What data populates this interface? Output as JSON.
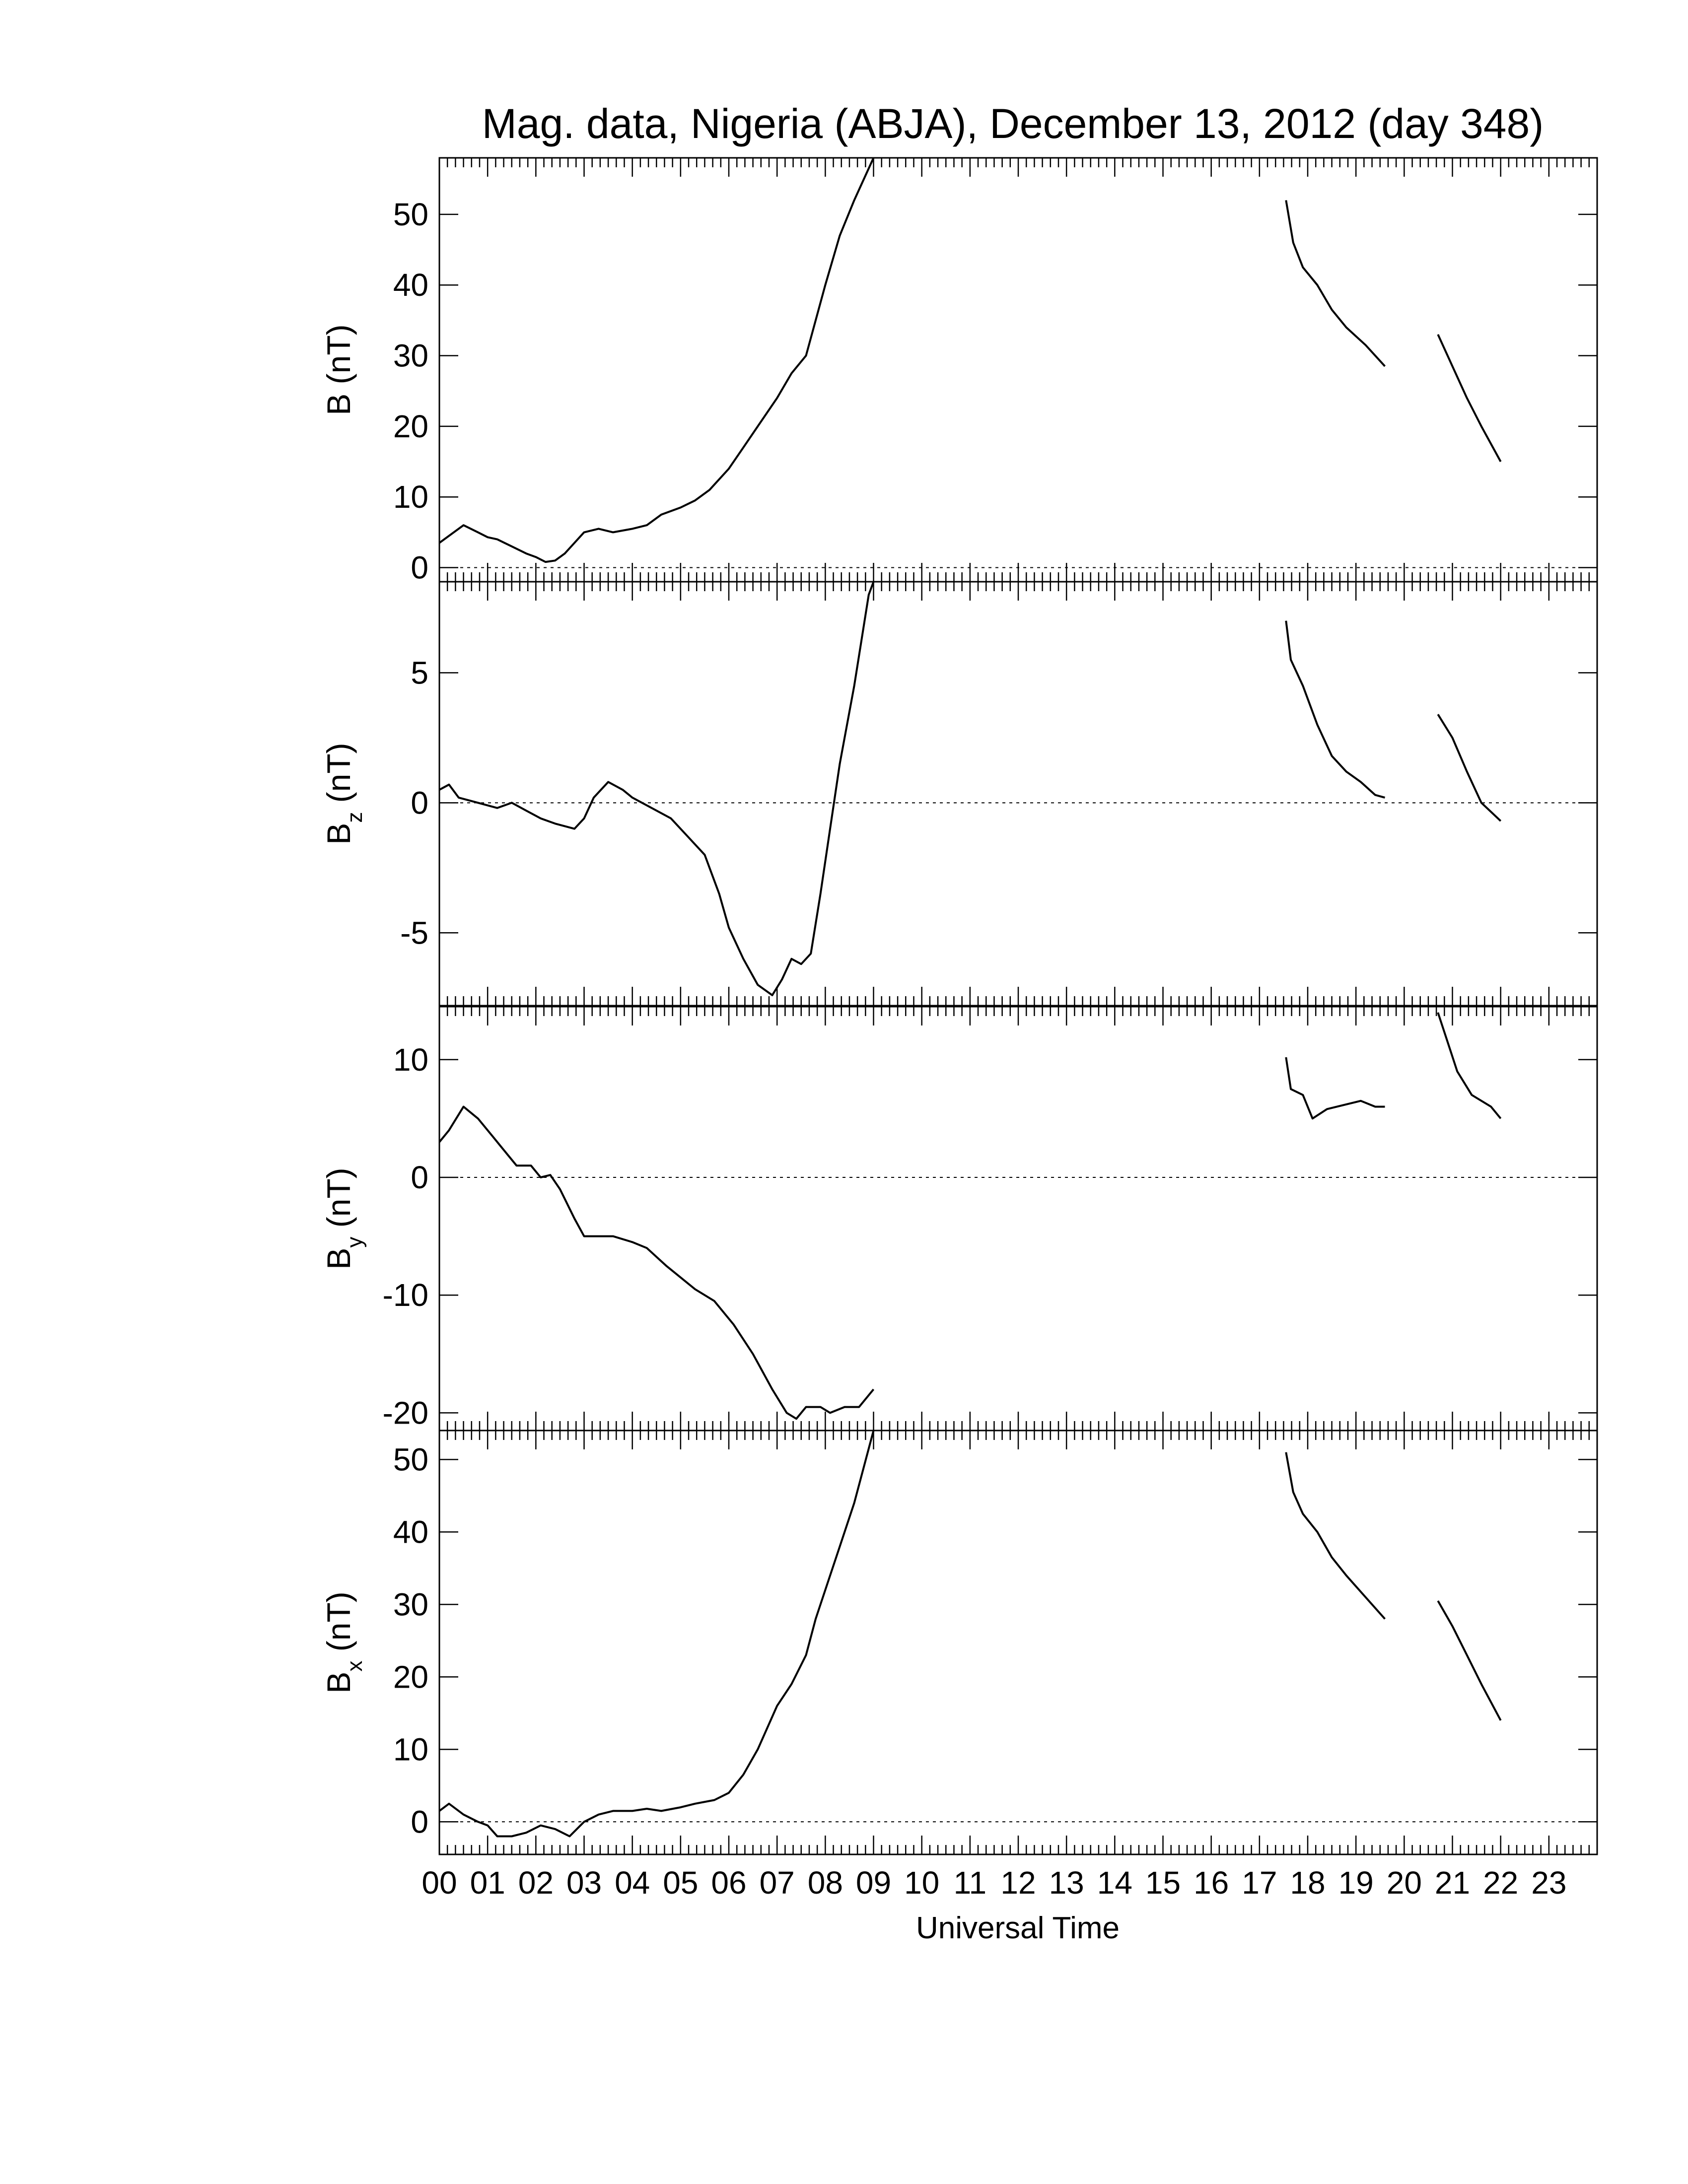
{
  "figure": {
    "title": "Mag. data, Nigeria (ABJA), December 13, 2012 (day 348)",
    "xlabel": "Universal Time"
  },
  "chart_data": {
    "type": "line",
    "title": "Mag. data, Nigeria (ABJA), December 13, 2012 (day 348)",
    "xlabel": "Universal Time",
    "x_unit": "hours UT",
    "xlim": [
      0,
      24
    ],
    "x_tick_labels": [
      "00",
      "01",
      "02",
      "03",
      "04",
      "05",
      "06",
      "07",
      "08",
      "09",
      "10",
      "11",
      "12",
      "13",
      "14",
      "15",
      "16",
      "17",
      "18",
      "19",
      "20",
      "21",
      "22",
      "23"
    ],
    "line_color": "#000000",
    "zero_reference_line": "dotted",
    "grid": false,
    "panels": [
      {
        "id": "B",
        "ylabel_main": "B",
        "ylabel_sub": "",
        "ylabel_unit": " (nT)",
        "ylim": [
          -2,
          58
        ],
        "yticks": [
          0,
          10,
          20,
          30,
          40,
          50
        ],
        "segments": [
          [
            [
              0.0,
              3.5
            ],
            [
              0.2,
              4.5
            ],
            [
              0.5,
              6.0
            ],
            [
              0.8,
              5.0
            ],
            [
              1.0,
              4.3
            ],
            [
              1.2,
              4.0
            ],
            [
              1.5,
              3.0
            ],
            [
              1.8,
              2.0
            ],
            [
              2.0,
              1.5
            ],
            [
              2.2,
              0.8
            ],
            [
              2.4,
              1.0
            ],
            [
              2.6,
              2.0
            ],
            [
              2.8,
              3.5
            ],
            [
              3.0,
              5.0
            ],
            [
              3.3,
              5.5
            ],
            [
              3.6,
              5.0
            ],
            [
              4.0,
              5.5
            ],
            [
              4.3,
              6.0
            ],
            [
              4.6,
              7.5
            ],
            [
              5.0,
              8.5
            ],
            [
              5.3,
              9.5
            ],
            [
              5.6,
              11.0
            ],
            [
              6.0,
              14.0
            ],
            [
              6.3,
              17.0
            ],
            [
              6.6,
              20.0
            ],
            [
              7.0,
              24.0
            ],
            [
              7.3,
              27.5
            ],
            [
              7.6,
              30.0
            ],
            [
              7.8,
              35.0
            ],
            [
              8.0,
              40.0
            ],
            [
              8.3,
              47.0
            ],
            [
              8.6,
              52.0
            ],
            [
              9.0,
              58.0
            ]
          ],
          [
            [
              17.55,
              52.0
            ],
            [
              17.7,
              46.0
            ],
            [
              17.9,
              42.5
            ],
            [
              18.2,
              40.0
            ],
            [
              18.5,
              36.5
            ],
            [
              18.8,
              34.0
            ],
            [
              19.2,
              31.5
            ],
            [
              19.6,
              28.5
            ]
          ],
          [
            [
              20.7,
              33.0
            ],
            [
              21.0,
              28.5
            ],
            [
              21.3,
              24.0
            ],
            [
              21.6,
              20.0
            ],
            [
              22.0,
              15.0
            ]
          ]
        ]
      },
      {
        "id": "Bz",
        "ylabel_main": "B",
        "ylabel_sub": "z",
        "ylabel_unit": " (nT)",
        "ylim": [
          -7.8,
          8.5
        ],
        "yticks": [
          -5,
          0,
          5
        ],
        "segments": [
          [
            [
              0.0,
              0.5
            ],
            [
              0.2,
              0.7
            ],
            [
              0.4,
              0.2
            ],
            [
              0.8,
              0.0
            ],
            [
              1.2,
              -0.2
            ],
            [
              1.5,
              0.0
            ],
            [
              1.8,
              -0.3
            ],
            [
              2.1,
              -0.6
            ],
            [
              2.4,
              -0.8
            ],
            [
              2.8,
              -1.0
            ],
            [
              3.0,
              -0.6
            ],
            [
              3.2,
              0.2
            ],
            [
              3.5,
              0.8
            ],
            [
              3.8,
              0.5
            ],
            [
              4.0,
              0.2
            ],
            [
              4.4,
              -0.2
            ],
            [
              4.8,
              -0.6
            ],
            [
              5.2,
              -1.4
            ],
            [
              5.5,
              -2.0
            ],
            [
              5.8,
              -3.5
            ],
            [
              6.0,
              -4.8
            ],
            [
              6.3,
              -6.0
            ],
            [
              6.6,
              -7.0
            ],
            [
              6.9,
              -7.4
            ],
            [
              7.1,
              -6.8
            ],
            [
              7.3,
              -6.0
            ],
            [
              7.5,
              -6.2
            ],
            [
              7.7,
              -5.8
            ],
            [
              7.9,
              -3.5
            ],
            [
              8.1,
              -1.0
            ],
            [
              8.3,
              1.5
            ],
            [
              8.6,
              4.5
            ],
            [
              8.9,
              8.0
            ],
            [
              9.0,
              8.5
            ]
          ],
          [
            [
              17.55,
              7.0
            ],
            [
              17.65,
              5.5
            ],
            [
              17.9,
              4.5
            ],
            [
              18.2,
              3.0
            ],
            [
              18.5,
              1.8
            ],
            [
              18.8,
              1.2
            ],
            [
              19.1,
              0.8
            ],
            [
              19.4,
              0.3
            ],
            [
              19.6,
              0.2
            ]
          ],
          [
            [
              20.7,
              3.4
            ],
            [
              21.0,
              2.5
            ],
            [
              21.3,
              1.2
            ],
            [
              21.6,
              0.0
            ],
            [
              22.0,
              -0.7
            ]
          ]
        ]
      },
      {
        "id": "By",
        "ylabel_main": "B",
        "ylabel_sub": "y",
        "ylabel_unit": " (nT)",
        "ylim": [
          -21.5,
          14.5
        ],
        "yticks": [
          -20,
          -10,
          0,
          10
        ],
        "segments": [
          [
            [
              0.0,
              3.0
            ],
            [
              0.2,
              4.0
            ],
            [
              0.5,
              6.0
            ],
            [
              0.8,
              5.0
            ],
            [
              1.1,
              3.5
            ],
            [
              1.3,
              2.5
            ],
            [
              1.6,
              1.0
            ],
            [
              1.9,
              1.0
            ],
            [
              2.1,
              0.0
            ],
            [
              2.3,
              0.2
            ],
            [
              2.5,
              -1.0
            ],
            [
              2.8,
              -3.5
            ],
            [
              3.0,
              -5.0
            ],
            [
              3.3,
              -5.0
            ],
            [
              3.6,
              -5.0
            ],
            [
              4.0,
              -5.5
            ],
            [
              4.3,
              -6.0
            ],
            [
              4.7,
              -7.5
            ],
            [
              5.0,
              -8.5
            ],
            [
              5.3,
              -9.5
            ],
            [
              5.7,
              -10.5
            ],
            [
              6.1,
              -12.5
            ],
            [
              6.5,
              -15.0
            ],
            [
              6.9,
              -18.0
            ],
            [
              7.2,
              -20.0
            ],
            [
              7.4,
              -20.5
            ],
            [
              7.6,
              -19.5
            ],
            [
              7.9,
              -19.5
            ],
            [
              8.1,
              -20.0
            ],
            [
              8.4,
              -19.5
            ],
            [
              8.7,
              -19.5
            ],
            [
              9.0,
              -18.0
            ]
          ],
          [
            [
              17.55,
              10.2
            ],
            [
              17.65,
              7.5
            ],
            [
              17.9,
              7.0
            ],
            [
              18.1,
              5.0
            ],
            [
              18.4,
              5.8
            ],
            [
              18.8,
              6.2
            ],
            [
              19.1,
              6.5
            ],
            [
              19.4,
              6.0
            ],
            [
              19.6,
              6.0
            ]
          ],
          [
            [
              20.7,
              14.0
            ],
            [
              20.9,
              11.5
            ],
            [
              21.1,
              9.0
            ],
            [
              21.4,
              7.0
            ],
            [
              21.8,
              6.0
            ],
            [
              22.0,
              5.0
            ]
          ]
        ]
      },
      {
        "id": "Bx",
        "ylabel_main": "B",
        "ylabel_sub": "x",
        "ylabel_unit": " (nT)",
        "ylim": [
          -4.5,
          54
        ],
        "yticks": [
          0,
          10,
          20,
          30,
          40,
          50
        ],
        "segments": [
          [
            [
              0.0,
              1.5
            ],
            [
              0.2,
              2.5
            ],
            [
              0.5,
              1.0
            ],
            [
              0.8,
              0.0
            ],
            [
              1.0,
              -0.5
            ],
            [
              1.2,
              -2.0
            ],
            [
              1.5,
              -2.0
            ],
            [
              1.8,
              -1.5
            ],
            [
              2.1,
              -0.5
            ],
            [
              2.4,
              -1.0
            ],
            [
              2.7,
              -2.0
            ],
            [
              3.0,
              0.0
            ],
            [
              3.3,
              1.0
            ],
            [
              3.6,
              1.5
            ],
            [
              4.0,
              1.5
            ],
            [
              4.3,
              1.8
            ],
            [
              4.6,
              1.5
            ],
            [
              5.0,
              2.0
            ],
            [
              5.3,
              2.5
            ],
            [
              5.7,
              3.0
            ],
            [
              6.0,
              4.0
            ],
            [
              6.3,
              6.5
            ],
            [
              6.6,
              10.0
            ],
            [
              7.0,
              16.0
            ],
            [
              7.3,
              19.0
            ],
            [
              7.6,
              23.0
            ],
            [
              7.8,
              28.0
            ],
            [
              8.0,
              32.0
            ],
            [
              8.3,
              38.0
            ],
            [
              8.6,
              44.0
            ],
            [
              9.0,
              54.0
            ]
          ],
          [
            [
              17.55,
              51.0
            ],
            [
              17.7,
              45.5
            ],
            [
              17.9,
              42.5
            ],
            [
              18.2,
              40.0
            ],
            [
              18.5,
              36.5
            ],
            [
              18.8,
              34.0
            ],
            [
              19.2,
              31.0
            ],
            [
              19.6,
              28.0
            ]
          ],
          [
            [
              20.7,
              30.5
            ],
            [
              21.0,
              27.0
            ],
            [
              21.3,
              23.0
            ],
            [
              21.6,
              19.0
            ],
            [
              22.0,
              14.0
            ]
          ]
        ]
      }
    ]
  }
}
